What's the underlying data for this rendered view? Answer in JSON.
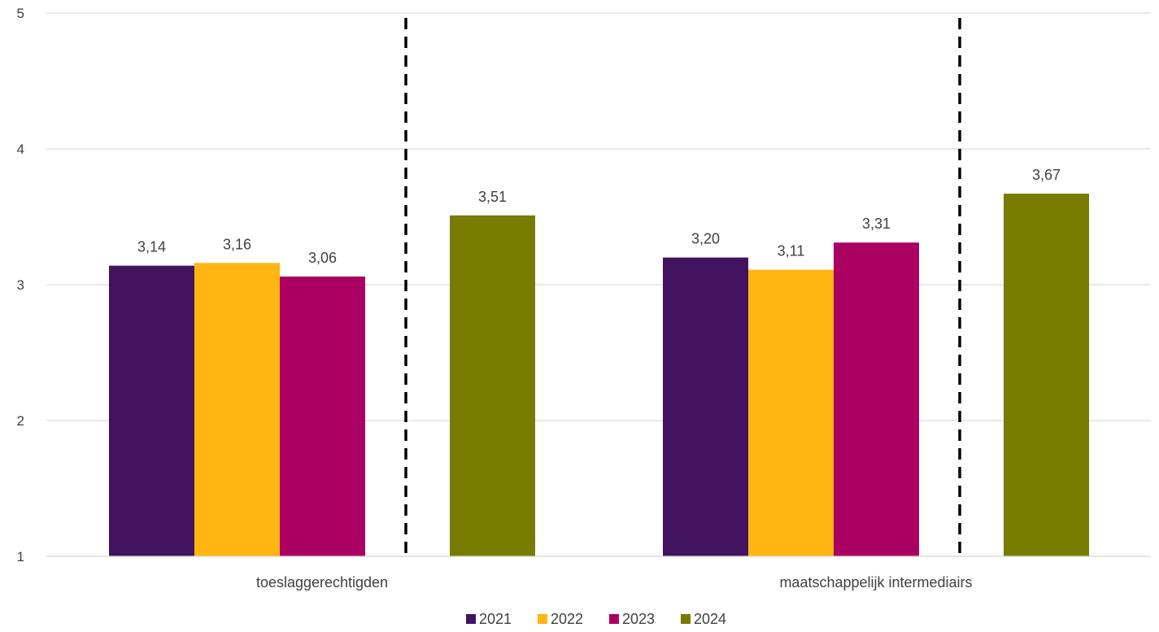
{
  "chart_data": {
    "type": "bar",
    "categories": [
      "toeslaggerechtigden",
      "maatschappelijk intermediairs"
    ],
    "series": [
      {
        "name": "2021",
        "color": "#42145f",
        "values": [
          3.14,
          3.2
        ],
        "labels": [
          "3,14",
          "3,20"
        ]
      },
      {
        "name": "2022",
        "color": "#ffb612",
        "values": [
          3.16,
          3.11
        ],
        "labels": [
          "3,16",
          "3,11"
        ]
      },
      {
        "name": "2023",
        "color": "#a90061",
        "values": [
          3.06,
          3.31
        ],
        "labels": [
          "3,06",
          "3,31"
        ]
      },
      {
        "name": "2024",
        "color": "#777c00",
        "values": [
          3.51,
          3.67
        ],
        "labels": [
          "3,51",
          "3,67"
        ]
      }
    ],
    "ylim": [
      1,
      5
    ],
    "yticks": [
      "1",
      "2",
      "3",
      "4",
      "5"
    ],
    "grid": true,
    "legend_position": "bottom",
    "separator_style": "dashed vertical line between 2023 and 2024 bars"
  }
}
